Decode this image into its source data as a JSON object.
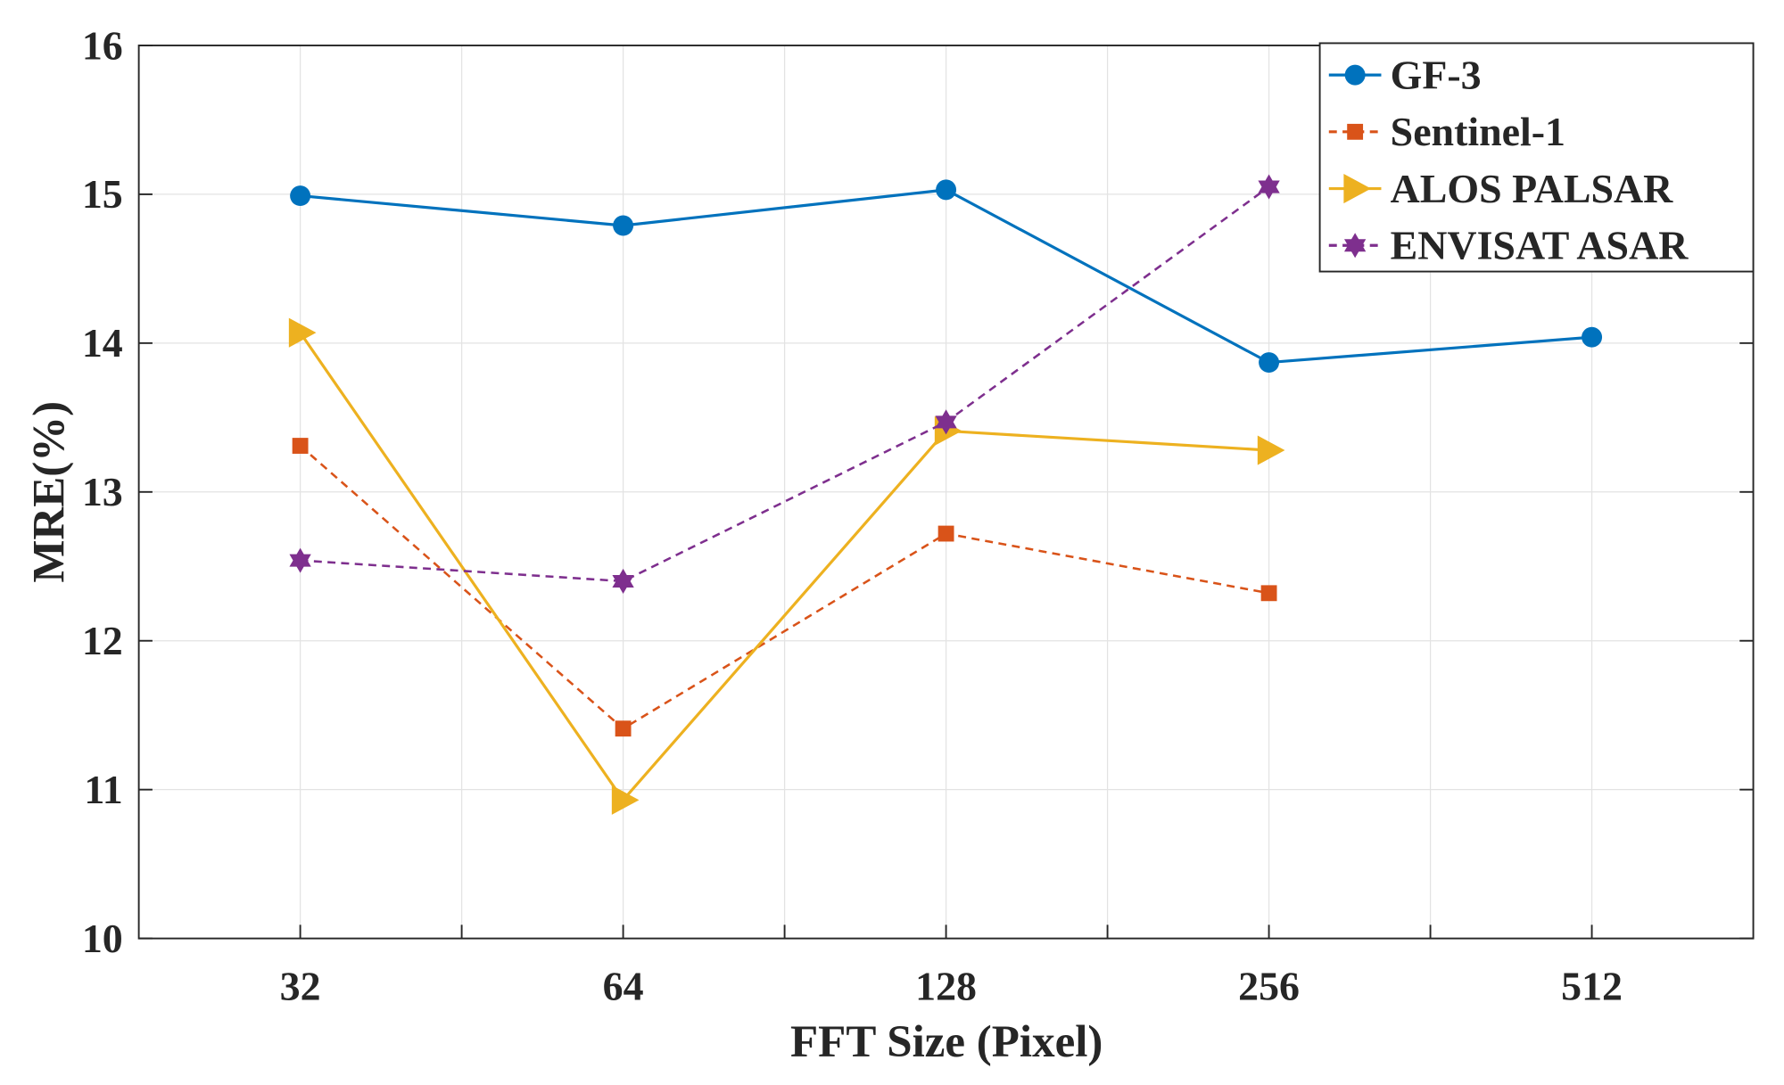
{
  "chart_data": {
    "type": "line",
    "title": "",
    "xlabel": "FFT Size (Pixel)",
    "ylabel": "MRE(%)",
    "categories": [
      "32",
      "64",
      "128",
      "256",
      "512"
    ],
    "ylim": [
      10,
      16
    ],
    "yticks": [
      "10",
      "11",
      "12",
      "13",
      "14",
      "15",
      "16"
    ],
    "grid": true,
    "legend_position": "top-right",
    "series": [
      {
        "name": "GF-3",
        "color": "#0072BD",
        "dash": "solid",
        "marker": "circle",
        "values": [
          14.99,
          14.79,
          15.03,
          13.87,
          14.04
        ]
      },
      {
        "name": "Sentinel-1",
        "color": "#D95319",
        "dash": "dashed",
        "marker": "square",
        "values": [
          13.31,
          11.41,
          12.72,
          12.32,
          null
        ]
      },
      {
        "name": "ALOS PALSAR",
        "color": "#EDB120",
        "dash": "solid",
        "marker": "triangle-right",
        "values": [
          14.07,
          10.93,
          13.41,
          13.28,
          null
        ]
      },
      {
        "name": "ENVISAT ASAR",
        "color": "#7E2F8E",
        "dash": "dashed",
        "marker": "hexagram",
        "values": [
          12.54,
          12.4,
          13.47,
          15.05,
          null
        ]
      }
    ]
  }
}
